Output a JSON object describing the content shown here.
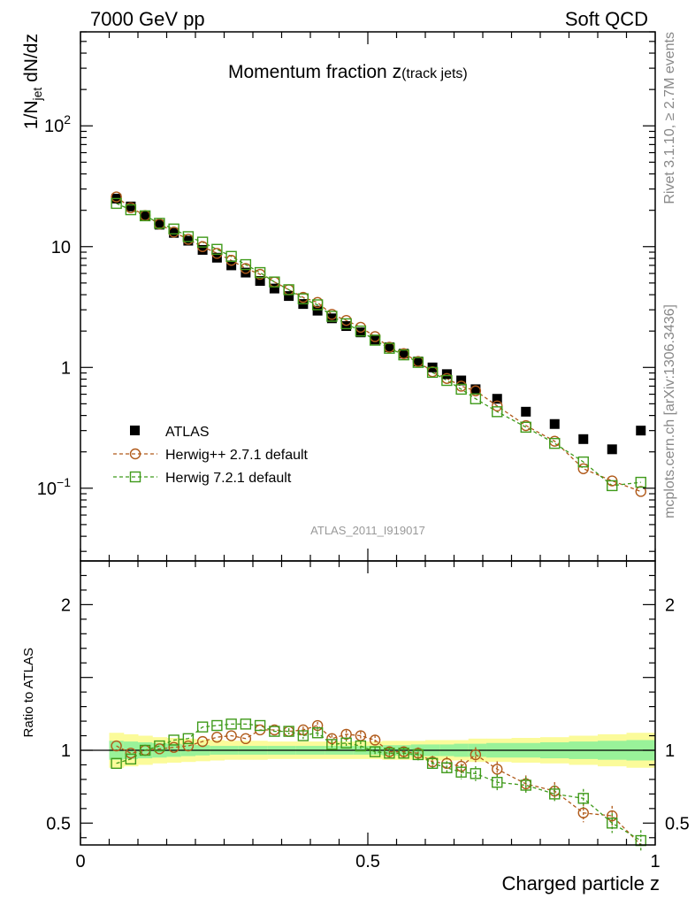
{
  "header": {
    "energy": "7000 GeV pp",
    "category": "Soft QCD"
  },
  "side": {
    "rivet": "Rivet 3.1.10, ≥ 2.7M events",
    "mcplots": "mcplots.cern.ch [arXiv:1306.3436]"
  },
  "title": {
    "main": "Momentum fraction z",
    "sub": "(track jets)"
  },
  "analysis_id": "ATLAS_2011_I919017",
  "legend": {
    "atlas": "ATLAS",
    "herwigpp": "Herwig++ 2.7.1 default",
    "herwig7": "Herwig 7.2.1 default"
  },
  "xlabel": "Charged particle z",
  "ylabel_main": "1/N_jet dN/dz",
  "ylabel_ratio": "Ratio to ATLAS",
  "colors": {
    "atlas": "#000000",
    "herwigpp": "#b05a1a",
    "herwig7": "#3f9a1a",
    "band_inner": "#99f299",
    "band_outer": "#fbfb9a"
  },
  "chart_data": [
    {
      "type": "scatter",
      "panel": "main",
      "yscale": "log",
      "xlim": [
        0,
        1
      ],
      "ylim": [
        0.025,
        600
      ],
      "x_ticks": [
        "0",
        "0.5",
        "1"
      ],
      "y_ticks": [
        "10^-1",
        "1",
        "10",
        "10^2"
      ],
      "x": [
        0.0625,
        0.0875,
        0.1125,
        0.1375,
        0.1625,
        0.1875,
        0.2125,
        0.2375,
        0.2625,
        0.2875,
        0.3125,
        0.3375,
        0.3625,
        0.3875,
        0.4125,
        0.4375,
        0.4625,
        0.4875,
        0.5125,
        0.5375,
        0.5625,
        0.5875,
        0.6125,
        0.6375,
        0.6625,
        0.6875,
        0.725,
        0.775,
        0.825,
        0.875,
        0.925,
        0.975
      ],
      "series": [
        {
          "name": "ATLAS",
          "values": [
            25.0,
            21.5,
            18.0,
            15.2,
            13.0,
            11.2,
            9.4,
            8.1,
            7.0,
            6.1,
            5.2,
            4.5,
            3.9,
            3.35,
            2.95,
            2.55,
            2.2,
            1.95,
            1.7,
            1.47,
            1.3,
            1.12,
            1.0,
            0.88,
            0.78,
            0.66,
            0.55,
            0.43,
            0.34,
            0.255,
            0.21,
            0.3
          ]
        },
        {
          "name": "Herwig++ 2.7.1 default",
          "values": [
            25.8,
            21.0,
            18.1,
            15.4,
            13.2,
            11.5,
            10.0,
            8.8,
            7.7,
            6.6,
            5.9,
            5.1,
            4.4,
            3.8,
            3.45,
            2.75,
            2.45,
            2.15,
            1.8,
            1.47,
            1.3,
            1.12,
            0.92,
            0.81,
            0.7,
            0.64,
            0.48,
            0.33,
            0.245,
            0.145,
            0.115,
            0.094
          ]
        },
        {
          "name": "Herwig 7.2.1 default",
          "values": [
            22.8,
            20.2,
            18.0,
            15.6,
            14.0,
            12.1,
            10.9,
            9.5,
            8.3,
            7.1,
            6.1,
            5.1,
            4.4,
            3.7,
            3.3,
            2.65,
            2.3,
            2.0,
            1.68,
            1.44,
            1.27,
            1.1,
            0.91,
            0.78,
            0.66,
            0.55,
            0.43,
            0.32,
            0.235,
            0.165,
            0.105,
            0.112
          ]
        }
      ]
    },
    {
      "type": "scatter",
      "panel": "ratio",
      "xlim": [
        0,
        1
      ],
      "ylim": [
        0.35,
        2.3
      ],
      "y_ticks": [
        "0.5",
        "1",
        "2"
      ],
      "series": [
        {
          "name": "Herwig++ 2.7.1 default",
          "values": [
            1.03,
            0.98,
            1.0,
            1.01,
            1.02,
            1.03,
            1.06,
            1.09,
            1.1,
            1.08,
            1.14,
            1.14,
            1.13,
            1.14,
            1.17,
            1.08,
            1.11,
            1.1,
            1.07,
            0.99,
            0.99,
            0.98,
            0.92,
            0.91,
            0.89,
            0.97,
            0.87,
            0.77,
            0.72,
            0.57,
            0.55,
            0.31
          ]
        },
        {
          "name": "Herwig 7.2.1 default",
          "values": [
            0.91,
            0.94,
            1.0,
            1.03,
            1.07,
            1.08,
            1.16,
            1.17,
            1.18,
            1.18,
            1.17,
            1.13,
            1.13,
            1.1,
            1.12,
            1.04,
            1.05,
            1.03,
            0.99,
            0.98,
            0.98,
            0.97,
            0.91,
            0.88,
            0.85,
            0.84,
            0.78,
            0.76,
            0.7,
            0.67,
            0.5,
            0.38
          ]
        }
      ],
      "band_inner_half": [
        0.065,
        0.06,
        0.055,
        0.05,
        0.045,
        0.04,
        0.035,
        0.03,
        0.03,
        0.03,
        0.03,
        0.03,
        0.03,
        0.03,
        0.03,
        0.03,
        0.03,
        0.03,
        0.03,
        0.035,
        0.035,
        0.04,
        0.04,
        0.04,
        0.045,
        0.045,
        0.05,
        0.05,
        0.055,
        0.06,
        0.065,
        0.07
      ],
      "band_outer_half": [
        0.12,
        0.11,
        0.1,
        0.09,
        0.085,
        0.08,
        0.075,
        0.07,
        0.065,
        0.065,
        0.065,
        0.06,
        0.06,
        0.06,
        0.06,
        0.06,
        0.06,
        0.06,
        0.06,
        0.065,
        0.065,
        0.065,
        0.07,
        0.07,
        0.07,
        0.08,
        0.08,
        0.085,
        0.09,
        0.1,
        0.11,
        0.12
      ]
    }
  ]
}
